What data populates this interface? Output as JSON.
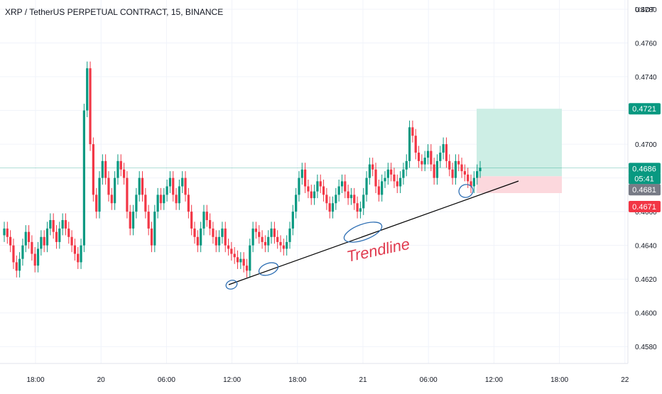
{
  "header": {
    "title": "XRP / TetherUS PERPETUAL CONTRACT, 15, BINANCE",
    "currency": "USDT"
  },
  "colors": {
    "up": "#089981",
    "down": "#f23645",
    "grid": "#f0f3fa",
    "axis_text": "#131722",
    "trendline": "#000000",
    "annotation": "#e03a4e",
    "circle": "#2e6fb4",
    "profit_zone": "#cdeee5",
    "loss_zone": "#fcd8dd"
  },
  "annotations": {
    "trendline_label": "Trendline"
  },
  "chart_data": {
    "type": "candlestick",
    "title": "XRP / TetherUS PERPETUAL CONTRACT, 15, BINANCE",
    "ylim": [
      0.457,
      0.478
    ],
    "y_ticks": [
      "0.4580",
      "0.4600",
      "0.4620",
      "0.4640",
      "0.4660",
      "0.4680",
      "0.4700",
      "0.4720",
      "0.4740",
      "0.4760",
      "0.4780"
    ],
    "x_ticks": [
      "18:00",
      "20",
      "06:00",
      "12:00",
      "18:00",
      "21",
      "06:00",
      "12:00",
      "18:00",
      "22"
    ],
    "price_labels": [
      {
        "value": "0.4721",
        "kind": "target"
      },
      {
        "value": "0.4686",
        "kind": "last"
      },
      {
        "value": "05:41",
        "kind": "countdown"
      },
      {
        "value": "0.4681",
        "kind": "entry"
      },
      {
        "value": "0.4671",
        "kind": "stop"
      }
    ],
    "position": {
      "target": 0.4721,
      "entry": 0.4681,
      "stop": 0.4671
    },
    "trendline": {
      "from": {
        "time": "20 11:30",
        "price": 0.4625
      },
      "to": {
        "time": "21 12:15",
        "price": 0.4686
      }
    },
    "last_price": 0.4686,
    "grid": true,
    "candle_closes": [
      0.465,
      0.4645,
      0.464,
      0.463,
      0.4625,
      0.4632,
      0.464,
      0.4648,
      0.4642,
      0.4635,
      0.4628,
      0.4638,
      0.4645,
      0.464,
      0.465,
      0.4655,
      0.4648,
      0.4642,
      0.465,
      0.4655,
      0.465,
      0.4645,
      0.464,
      0.4635,
      0.463,
      0.464,
      0.472,
      0.4745,
      0.47,
      0.467,
      0.466,
      0.468,
      0.469,
      0.468,
      0.467,
      0.4665,
      0.468,
      0.469,
      0.4685,
      0.468,
      0.466,
      0.465,
      0.466,
      0.467,
      0.468,
      0.467,
      0.466,
      0.465,
      0.464,
      0.466,
      0.467,
      0.4665,
      0.467,
      0.4675,
      0.468,
      0.467,
      0.4665,
      0.4675,
      0.468,
      0.467,
      0.466,
      0.465,
      0.4645,
      0.464,
      0.465,
      0.466,
      0.4655,
      0.465,
      0.4645,
      0.464,
      0.4645,
      0.465,
      0.464,
      0.4638,
      0.4635,
      0.4633,
      0.463,
      0.4632,
      0.4628,
      0.4625,
      0.464,
      0.465,
      0.4648,
      0.4645,
      0.4642,
      0.464,
      0.4645,
      0.465,
      0.4645,
      0.4642,
      0.464,
      0.4638,
      0.4642,
      0.465,
      0.466,
      0.467,
      0.468,
      0.4685,
      0.4675,
      0.4672,
      0.4668,
      0.4672,
      0.4678,
      0.4675,
      0.467,
      0.4665,
      0.466,
      0.4665,
      0.467,
      0.4675,
      0.4678,
      0.4672,
      0.4668,
      0.467,
      0.4665,
      0.466,
      0.4662,
      0.467,
      0.468,
      0.4688,
      0.4685,
      0.4675,
      0.467,
      0.4678,
      0.468,
      0.4685,
      0.4682,
      0.4678,
      0.4675,
      0.468,
      0.4685,
      0.469,
      0.471,
      0.4705,
      0.4695,
      0.469,
      0.4688,
      0.4692,
      0.4696,
      0.4688,
      0.468,
      0.469,
      0.4695,
      0.47,
      0.469,
      0.4685,
      0.468,
      0.469,
      0.4688,
      0.4684,
      0.4682,
      0.4678,
      0.4675,
      0.468,
      0.4684,
      0.4686
    ]
  }
}
